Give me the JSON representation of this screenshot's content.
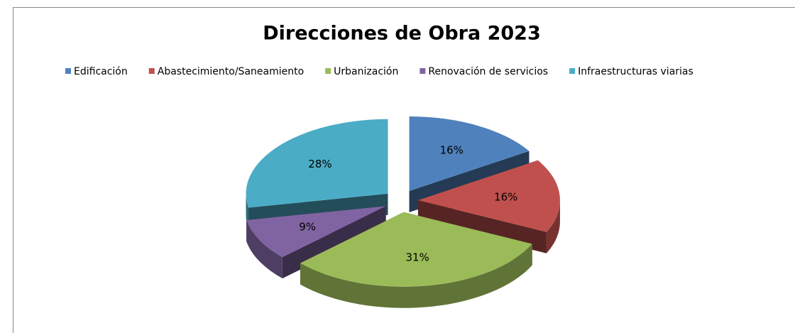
{
  "chart_data": {
    "type": "pie",
    "title": "Direcciones de Obra 2023",
    "categories": [
      "Edificación",
      "Abastecimiento/Saneamiento",
      "Urbanización",
      "Renovación de servicios",
      "Infraestructuras viarias"
    ],
    "values": [
      16,
      16,
      31,
      9,
      28
    ],
    "value_labels": [
      "16%",
      "16%",
      "31%",
      "9%",
      "28%"
    ],
    "colors": [
      "#4f81bd",
      "#c0504d",
      "#9bbb59",
      "#8064a2",
      "#4bacc6"
    ],
    "legend": "top"
  }
}
